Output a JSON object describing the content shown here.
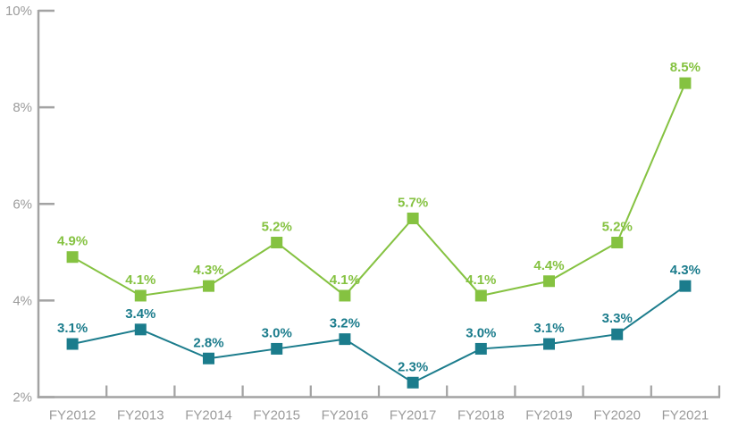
{
  "chart_data": {
    "type": "line",
    "title": "",
    "xlabel": "",
    "ylabel": "",
    "categories": [
      "FY2012",
      "FY2013",
      "FY2014",
      "FY2015",
      "FY2016",
      "FY2017",
      "FY2018",
      "FY2019",
      "FY2020",
      "FY2021"
    ],
    "series": [
      {
        "name": "green-series",
        "color": "#85C241",
        "marker": "square",
        "values": [
          4.9,
          4.1,
          4.3,
          5.2,
          4.1,
          5.7,
          4.1,
          4.4,
          5.2,
          8.5
        ],
        "labels": [
          "4.9%",
          "4.1%",
          "4.3%",
          "5.2%",
          "4.1%",
          "5.7%",
          "4.1%",
          "4.4%",
          "5.2%",
          "8.5%"
        ]
      },
      {
        "name": "teal-series",
        "color": "#1B7C8C",
        "marker": "square",
        "values": [
          3.1,
          3.4,
          2.8,
          3.0,
          3.2,
          2.3,
          3.0,
          3.1,
          3.3,
          4.3
        ],
        "labels": [
          "3.1%",
          "3.4%",
          "2.8%",
          "3.0%",
          "3.2%",
          "2.3%",
          "3.0%",
          "3.1%",
          "3.3%",
          "4.3%"
        ]
      }
    ],
    "ylim": [
      2,
      10
    ],
    "ytick_step": 2,
    "ytick_labels": [
      "2%",
      "4%",
      "6%",
      "8%",
      "10%"
    ],
    "grid": false,
    "legend": "none",
    "data_labels": true,
    "colors": {
      "axis": "#A3A3A3",
      "tick_label": "#9B9B9B",
      "background": "#FFFFFF"
    }
  }
}
